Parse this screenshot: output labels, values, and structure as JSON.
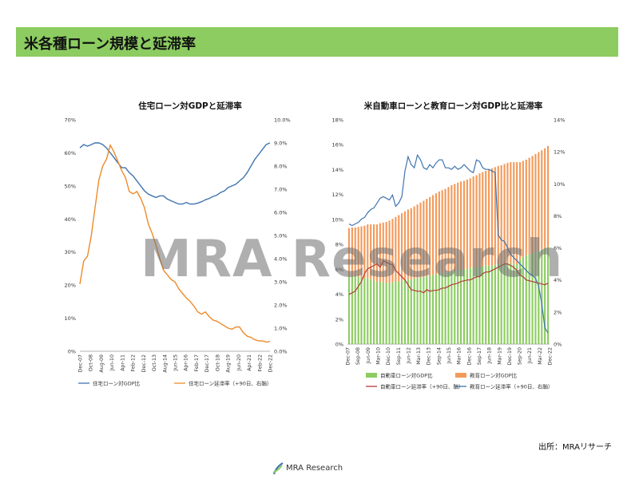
{
  "page": {
    "title": "米各種ローン規模と延滞率",
    "source": "出所：MRAリサーチ",
    "watermark": "MRA Research",
    "logo_text": "MRA Research"
  },
  "colors": {
    "title_bar": "#8ccc60",
    "housing_gdp": "#3f74b0",
    "housing_delinq": "#ee8a2b",
    "auto_bar": "#8ccc60",
    "edu_bar": "#f39a5a",
    "auto_delinq": "#b33a3a",
    "edu_delinq": "#3f74b0"
  },
  "chart_data": [
    {
      "type": "line",
      "title": "住宅ローン対GDPと延滞率",
      "x_tick_labels": [
        "Dec-07",
        "Oct-08",
        "Aug-09",
        "Jun-10",
        "Apr-11",
        "Feb-12",
        "Dec-12",
        "Oct-13",
        "Aug-14",
        "Jun-15",
        "Apr-16",
        "Feb-17",
        "Dec-17",
        "Oct-18",
        "Aug-19",
        "Jun-20",
        "Apr-21",
        "Feb-22",
        "Dec-22"
      ],
      "ylim": [
        0,
        70
      ],
      "y_ticks": [
        "0%",
        "10%",
        "20%",
        "30%",
        "40%",
        "50%",
        "60%",
        "70%"
      ],
      "y2lim": [
        0,
        10
      ],
      "y2_ticks": [
        "0.0%",
        "1.0%",
        "2.0%",
        "3.0%",
        "4.0%",
        "5.0%",
        "6.0%",
        "7.0%",
        "8.0%",
        "9.0%",
        "10.0%"
      ],
      "series": [
        {
          "name": "住宅ローン対GDP比",
          "axis": "left",
          "values": [
            61.5,
            62.5,
            62,
            62.5,
            63,
            63,
            62.5,
            61.5,
            60,
            58.5,
            57,
            55.5,
            55.5,
            54,
            53,
            51.5,
            50,
            48.5,
            47.5,
            47,
            46.5,
            47,
            47,
            46,
            45.5,
            45,
            44.5,
            44.5,
            45,
            44.5,
            44.5,
            44.8,
            45.2,
            45.8,
            46.2,
            46.8,
            47.2,
            48,
            48.5,
            49.5,
            50,
            50.5,
            51.5,
            52.5,
            54,
            56,
            58,
            59.5,
            61,
            62.5,
            63
          ]
        },
        {
          "name": "住宅ローン延滞率（+90日、右軸）",
          "axis": "right",
          "values": [
            2.9,
            3.9,
            4.1,
            5.0,
            6.2,
            7.4,
            8.0,
            8.3,
            8.9,
            8.6,
            8.2,
            7.8,
            7.5,
            6.9,
            6.8,
            6.9,
            6.6,
            6.2,
            5.5,
            5.1,
            4.6,
            4.0,
            3.5,
            3.3,
            3.1,
            3.0,
            2.7,
            2.5,
            2.3,
            2.15,
            1.95,
            1.7,
            1.6,
            1.7,
            1.5,
            1.35,
            1.3,
            1.2,
            1.1,
            1.0,
            0.95,
            1.05,
            1.05,
            0.8,
            0.65,
            0.6,
            0.5,
            0.45,
            0.45,
            0.4,
            0.42
          ]
        }
      ]
    },
    {
      "type": "bar",
      "title": "米自動車ローンと教育ローン対GDP比と延滞率",
      "x_tick_labels": [
        "Dec-07",
        "Sep-08",
        "Jun-09",
        "Mar-10",
        "Dec-10",
        "Sep-11",
        "Jun-12",
        "Mar-13",
        "Dec-13",
        "Sep-14",
        "Jun-15",
        "Mar-16",
        "Dec-16",
        "Sep-17",
        "Jun-18",
        "Mar-19",
        "Dec-19",
        "Sep-20",
        "Jun-21",
        "Mar-22",
        "Dec-22"
      ],
      "ylim": [
        0,
        18
      ],
      "y_ticks": [
        "0%",
        "2%",
        "4%",
        "6%",
        "8%",
        "10%",
        "12%",
        "14%",
        "16%",
        "18%"
      ],
      "y2lim": [
        0,
        14
      ],
      "y2_ticks": [
        "0%",
        "2%",
        "4%",
        "6%",
        "8%",
        "10%",
        "12%",
        "14%"
      ],
      "bar_series": [
        {
          "name": "自動車ローン対GDP比",
          "values": [
            5.5,
            5.5,
            5.45,
            5.4,
            5.35,
            5.3,
            5.3,
            5.2,
            5.1,
            5.0,
            5.0,
            4.95,
            4.9,
            4.9,
            4.95,
            5.0,
            5.05,
            5.1,
            5.15,
            5.2,
            5.2,
            5.25,
            5.3,
            5.35,
            5.4,
            5.45,
            5.5,
            5.55,
            5.6,
            5.65,
            5.7,
            5.75,
            5.8,
            5.85,
            5.9,
            5.95,
            6.0,
            6.0,
            6.05,
            6.1,
            6.15,
            6.15,
            6.2,
            6.25,
            6.3,
            6.3,
            6.3,
            6.35,
            6.4,
            6.4,
            6.45,
            6.5,
            6.5,
            6.45,
            6.4,
            6.8,
            7.0,
            7.1,
            7.2,
            7.3,
            7.4,
            7.5,
            7.6,
            7.7,
            7.8
          ]
        },
        {
          "name": "教育ローン対GDP比",
          "values": [
            3.8,
            3.85,
            3.9,
            4.0,
            4.1,
            4.2,
            4.3,
            4.4,
            4.5,
            4.6,
            4.7,
            4.8,
            4.9,
            5.0,
            5.1,
            5.2,
            5.3,
            5.4,
            5.5,
            5.6,
            5.7,
            5.8,
            5.9,
            6.0,
            6.1,
            6.2,
            6.3,
            6.4,
            6.5,
            6.6,
            6.65,
            6.7,
            6.8,
            6.9,
            6.95,
            7.0,
            7.05,
            7.1,
            7.15,
            7.2,
            7.3,
            7.4,
            7.5,
            7.55,
            7.6,
            7.7,
            7.8,
            7.85,
            7.9,
            7.95,
            8.0,
            8.05,
            8.1,
            8.15,
            8.2,
            7.8,
            7.7,
            7.7,
            7.75,
            7.8,
            7.85,
            7.9,
            7.95,
            8.0,
            8.1
          ]
        }
      ],
      "line_series": [
        {
          "name": "自動車ローン延滞率（+90日、軸）",
          "axis": "right",
          "values": [
            3.1,
            3.2,
            3.3,
            3.6,
            3.9,
            4.4,
            4.7,
            4.8,
            4.9,
            5.0,
            4.8,
            5.2,
            5.1,
            5.0,
            4.95,
            4.6,
            4.4,
            4.2,
            4.0,
            3.7,
            3.4,
            3.35,
            3.3,
            3.3,
            3.2,
            3.4,
            3.3,
            3.35,
            3.35,
            3.4,
            3.5,
            3.5,
            3.6,
            3.7,
            3.75,
            3.8,
            3.9,
            3.95,
            4.0,
            4.0,
            4.1,
            4.2,
            4.2,
            4.4,
            4.5,
            4.5,
            4.6,
            4.7,
            4.8,
            4.9,
            5.0,
            5.0,
            4.9,
            4.8,
            4.6,
            4.3,
            4.2,
            4.0,
            3.95,
            3.9,
            3.85,
            3.8,
            3.75,
            3.7,
            3.8
          ]
        },
        {
          "name": "教育ローン延滞率（+90日、右軸）",
          "axis": "right",
          "values": [
            7.5,
            7.4,
            7.5,
            7.6,
            7.8,
            7.9,
            8.2,
            8.4,
            8.5,
            8.8,
            9.1,
            9.2,
            9.1,
            9.0,
            9.3,
            8.6,
            8.8,
            9.2,
            10.8,
            11.7,
            11.2,
            11.0,
            11.8,
            11.5,
            11.0,
            10.9,
            11.2,
            11.0,
            11.3,
            11.5,
            11.5,
            11.0,
            11.0,
            10.9,
            11.1,
            10.9,
            11.0,
            11.2,
            11.0,
            10.8,
            10.7,
            11.5,
            11.4,
            11.0,
            10.9,
            10.9,
            10.8,
            10.7,
            6.8,
            6.5,
            6.4,
            6.0,
            5.6,
            5.4,
            5.2,
            5.0,
            4.8,
            4.6,
            4.4,
            4.3,
            4.1,
            3.6,
            2.5,
            1.0,
            0.7
          ]
        }
      ]
    }
  ]
}
